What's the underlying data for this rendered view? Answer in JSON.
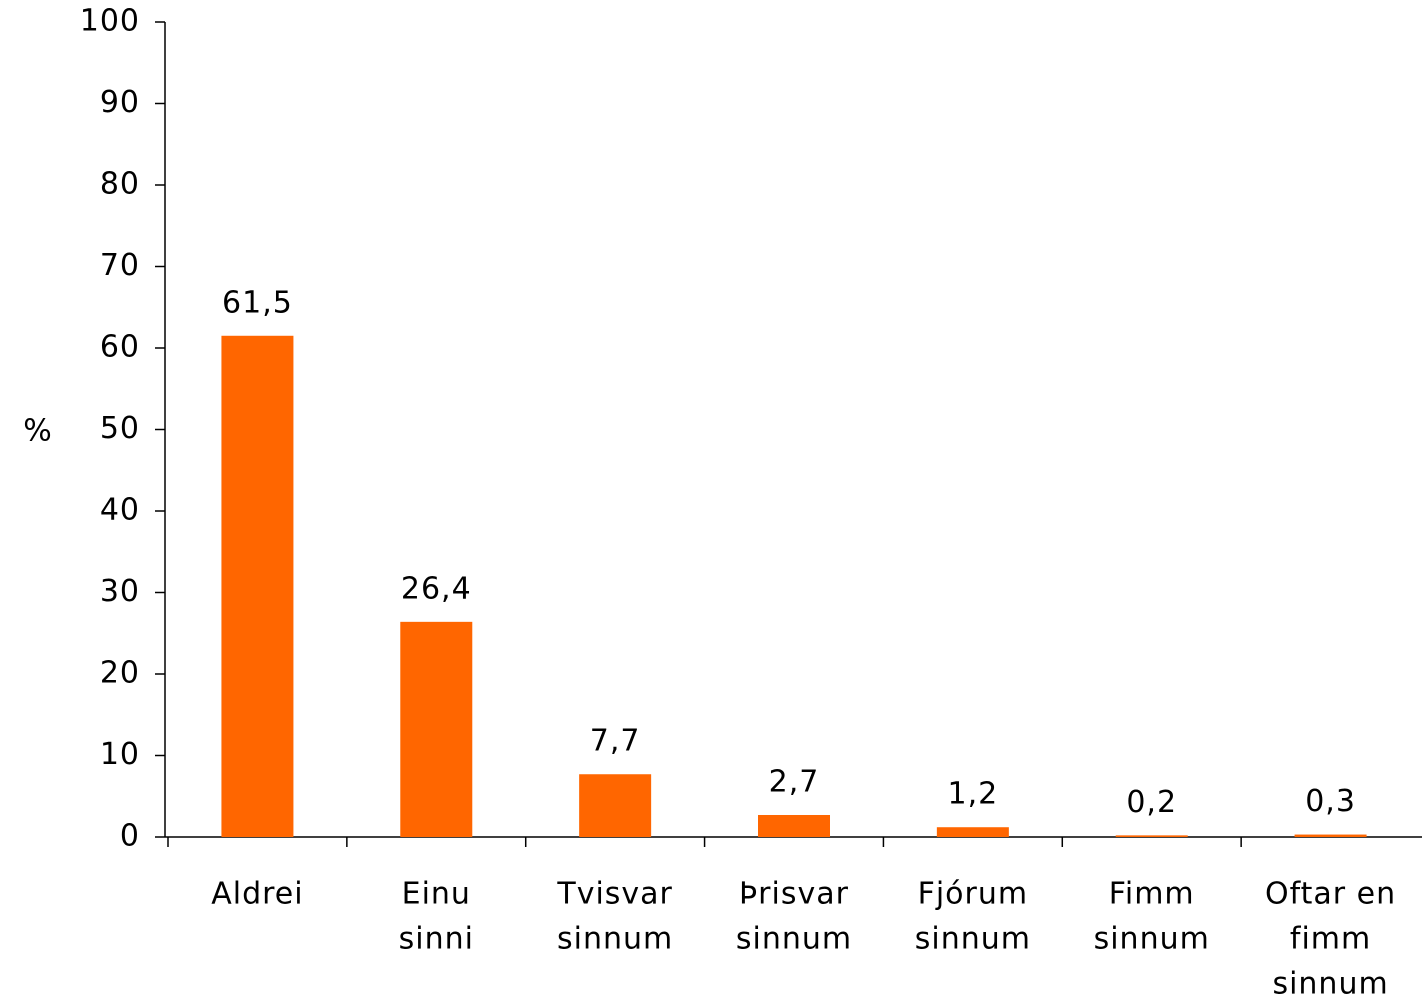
{
  "chart_data": {
    "type": "bar",
    "y_label": "%",
    "categories": [
      [
        "Aldrei"
      ],
      [
        "Einu",
        "sinni"
      ],
      [
        "Tvisvar",
        "sinnum"
      ],
      [
        "Þrisvar",
        "sinnum"
      ],
      [
        "Fjórum",
        "sinnum"
      ],
      [
        "Fimm",
        "sinnum"
      ],
      [
        "Oftar en",
        "fimm",
        "sinnum"
      ]
    ],
    "values": [
      61.5,
      26.4,
      7.7,
      2.7,
      1.2,
      0.2,
      0.3
    ],
    "value_labels": [
      "61,5",
      "26,4",
      "7,7",
      "2,7",
      "1,2",
      "0,2",
      "0,3"
    ],
    "color": "#ff6600",
    "ylim": [
      0,
      100
    ],
    "yticks": [
      0,
      10,
      20,
      30,
      40,
      50,
      60,
      70,
      80,
      90,
      100
    ],
    "grid": false
  }
}
